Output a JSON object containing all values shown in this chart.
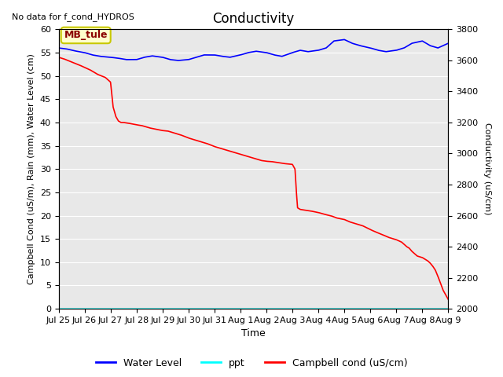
{
  "title": "Conductivity",
  "top_left_text": "No data for f_cond_HYDROS",
  "xlabel": "Time",
  "ylabel_left": "Campbell Cond (uS/m), Rain (mm), Water Level (cm)",
  "ylabel_right": "Conductivity (uS/cm)",
  "ylim_left": [
    0,
    60
  ],
  "ylim_right": [
    2000,
    3800
  ],
  "xtick_labels": [
    "Jul 25",
    "Jul 26",
    "Jul 27",
    "Jul 28",
    "Jul 29",
    "Jul 30",
    "Jul 31",
    "Aug 1",
    "Aug 2",
    "Aug 3",
    "Aug 4",
    "Aug 5",
    "Aug 6",
    "Aug 7",
    "Aug 8",
    "Aug 9"
  ],
  "ytick_left": [
    0,
    5,
    10,
    15,
    20,
    25,
    30,
    35,
    40,
    45,
    50,
    55,
    60
  ],
  "ytick_right": [
    2000,
    2200,
    2400,
    2600,
    2800,
    3000,
    3200,
    3400,
    3600,
    3800
  ],
  "bg_color": "#e8e8e8",
  "legend_entries": [
    "Water Level",
    "ppt",
    "Campbell cond (uS/cm)"
  ],
  "legend_colors": [
    "blue",
    "cyan",
    "red"
  ],
  "annotation_text": "MB_tule",
  "annotation_bg": "#ffffcc",
  "annotation_border": "#c8c800",
  "water_level_color": "blue",
  "ppt_color": "cyan",
  "campbell_color": "red",
  "water_level_linewidth": 1.2,
  "campbell_linewidth": 1.2,
  "grid_color": "white",
  "title_fontsize": 12,
  "label_fontsize": 8,
  "tick_fontsize": 8
}
